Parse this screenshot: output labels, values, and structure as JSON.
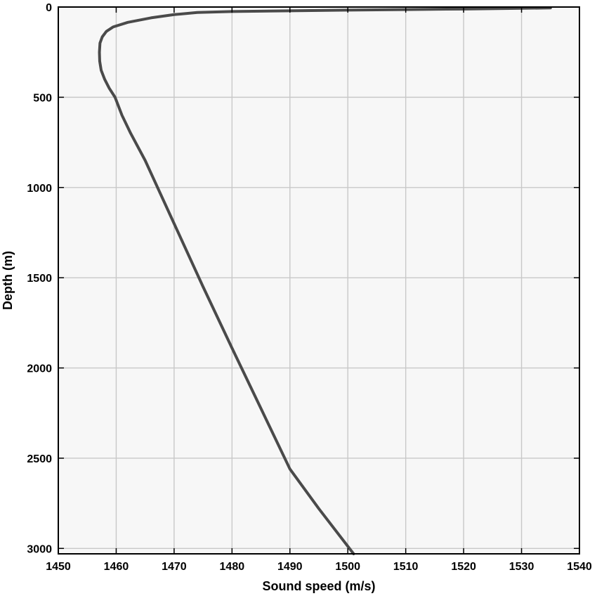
{
  "chart_data": {
    "type": "line",
    "xlabel": "Sound speed (m/s)",
    "ylabel": "Depth (m)",
    "xlim": [
      1450,
      1540
    ],
    "ylim": [
      0,
      3030
    ],
    "y_reversed": true,
    "grid": true,
    "x_ticks": [
      "1450",
      "1460",
      "1470",
      "1480",
      "1490",
      "1500",
      "1510",
      "1520",
      "1530",
      "1540"
    ],
    "y_ticks": [
      "0",
      "500",
      "1000",
      "1500",
      "2000",
      "2500",
      "3000"
    ],
    "colors": {
      "line": "#4a4a4a",
      "plot_background": "#f7f7f7",
      "grid": "#c8c8c8"
    },
    "series": [
      {
        "x": [
          1535.0,
          1528.0,
          1520.0,
          1510.0,
          1500.0,
          1490.0,
          1480.0,
          1474.0,
          1470.0,
          1466.0,
          1462.0,
          1459.5,
          1458.3,
          1457.6,
          1457.2,
          1457.1,
          1457.15,
          1457.4,
          1458.0,
          1458.8,
          1459.8,
          1461.0,
          1462.5,
          1465.0,
          1470.0,
          1475.0,
          1480.0,
          1485.0,
          1490.0,
          1495.0,
          1501.0
        ],
        "y": [
          5,
          8,
          11,
          14,
          17,
          21,
          25,
          30,
          42,
          60,
          85,
          110,
          135,
          165,
          200,
          250,
          300,
          350,
          400,
          450,
          500,
          600,
          700,
          850,
          1200,
          1550,
          1890,
          2225,
          2560,
          2780,
          3030
        ]
      }
    ]
  }
}
